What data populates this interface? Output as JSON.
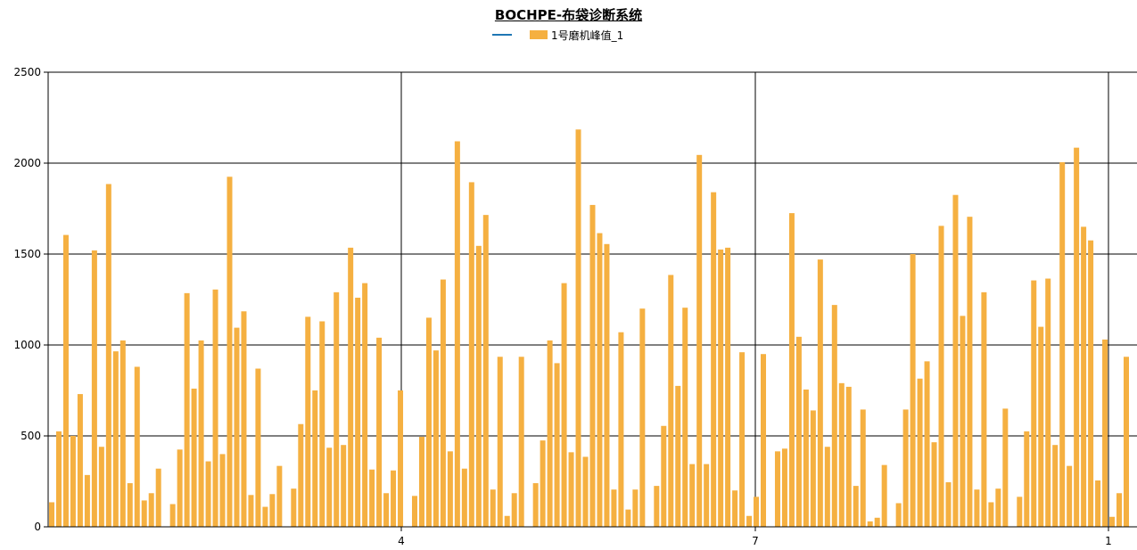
{
  "title": "BOCHPE-布袋诊断系统",
  "legend": {
    "series_line": "",
    "series_bar": "1号磨机峰值_1"
  },
  "colors": {
    "bar": "#f5b041",
    "line": "#1f77b4",
    "grid": "#000000",
    "background": "#ffffff"
  },
  "chart_data": {
    "type": "bar",
    "title": "BOCHPE-布袋诊断系统",
    "xlabel": "",
    "ylabel": "",
    "ylim": [
      0,
      2500
    ],
    "yticks": [
      0,
      500,
      1000,
      1500,
      2000,
      2500
    ],
    "xticks": [
      "4",
      "7",
      "1"
    ],
    "grid": true,
    "legend_position": "top-center",
    "series": [
      {
        "name": "1号磨机峰值_1",
        "values": [
          135,
          525,
          1605,
          500,
          730,
          285,
          1520,
          440,
          1885,
          965,
          1025,
          240,
          880,
          145,
          185,
          320,
          0,
          125,
          425,
          1285,
          760,
          1025,
          360,
          1305,
          400,
          1925,
          1095,
          1185,
          175,
          870,
          110,
          180,
          335,
          0,
          210,
          565,
          1155,
          750,
          1130,
          435,
          1290,
          450,
          1535,
          1260,
          1340,
          315,
          1040,
          185,
          310,
          750,
          0,
          170,
          495,
          1150,
          970,
          1360,
          415,
          2120,
          320,
          1895,
          1545,
          1715,
          205,
          935,
          60,
          185,
          935,
          0,
          240,
          475,
          1025,
          900,
          1340,
          410,
          2185,
          385,
          1770,
          1615,
          1555,
          205,
          1070,
          95,
          205,
          1200,
          0,
          225,
          555,
          1385,
          775,
          1205,
          345,
          2045,
          345,
          1840,
          1525,
          1535,
          200,
          960,
          60,
          165,
          950,
          0,
          415,
          430,
          1725,
          1045,
          755,
          640,
          1470,
          440,
          1220,
          790,
          770,
          225,
          645,
          30,
          50,
          340,
          0,
          130,
          645,
          1500,
          815,
          910,
          465,
          1655,
          245,
          1825,
          1160,
          1705,
          205,
          1290,
          135,
          210,
          650,
          0,
          165,
          525,
          1355,
          1100,
          1365,
          450,
          2005,
          335,
          2085,
          1650,
          1575,
          255,
          1030,
          55,
          185,
          935
        ]
      }
    ]
  }
}
